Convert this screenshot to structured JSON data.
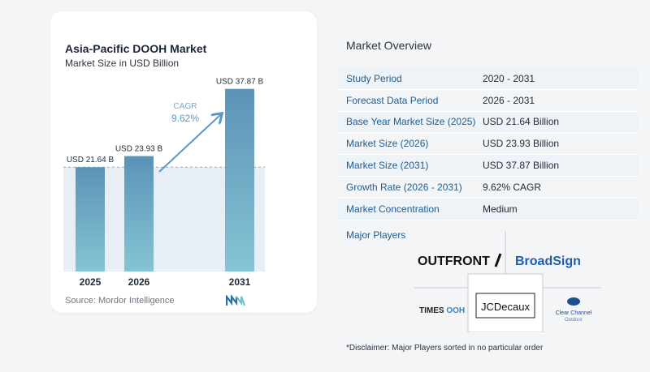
{
  "header": {
    "title": "Asia-Pacific DOOH Market",
    "subtitle": "Market Size in USD Billion"
  },
  "chart_data": {
    "type": "bar",
    "categories": [
      "2025",
      "2026",
      "2031"
    ],
    "values": [
      21.64,
      23.93,
      37.87
    ],
    "data_labels": [
      "USD 21.64 B",
      "USD 23.93 B",
      "USD 37.87 B"
    ],
    "cagr_label": "CAGR",
    "cagr_value": "9.62%",
    "ylim": [
      0,
      40
    ],
    "grid": false,
    "colors": {
      "bar_top": "#5b93b8",
      "bar_bottom": "#86c4d3",
      "band": "#e7eef5",
      "arrow": "#5a98c4"
    }
  },
  "footer": {
    "source": "Source:  Mordor Intelligence"
  },
  "overview": {
    "title": "Market Overview",
    "rows": [
      {
        "label": "Study Period",
        "value": "2020 - 2031"
      },
      {
        "label": "Forecast Data Period",
        "value": "2026 - 2031"
      },
      {
        "label": "Base Year Market Size (2025)",
        "value": "USD 21.64 Billion"
      },
      {
        "label": "Market Size (2026)",
        "value": "USD 23.93 Billion"
      },
      {
        "label": "Market Size (2031)",
        "value": "USD 37.87 Billion"
      },
      {
        "label": "Growth Rate (2026 - 2031)",
        "value": "9.62% CAGR"
      },
      {
        "label": "Market Concentration",
        "value": "Medium"
      }
    ]
  },
  "players": {
    "title": "Major Players",
    "outfront": "OUTFRONT",
    "broadsign": "BroadSign",
    "times_a": "TIMES",
    "times_b": "OOH",
    "jcdecaux": "JCDecaux",
    "clear_channel_a": "Clear Channel",
    "clear_channel_b": "Outdoor"
  },
  "disclaimer": "*Disclaimer: Major Players sorted in no particular order"
}
